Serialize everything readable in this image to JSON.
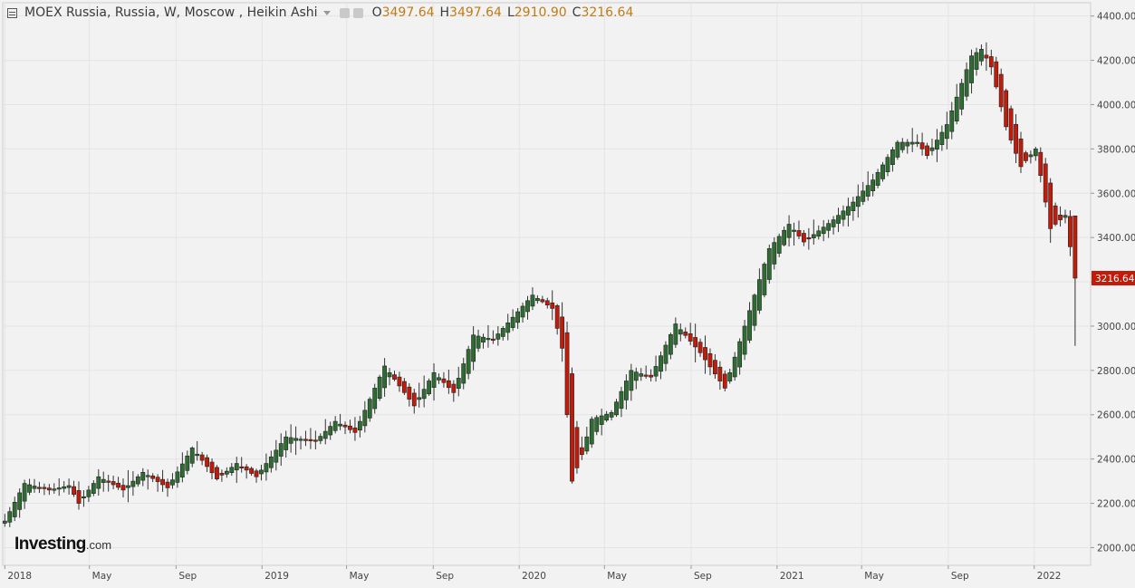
{
  "legend": {
    "symbol": "MOEX Russia, Russia, W, Moscow , Heikin Ashi",
    "open_key": "O",
    "open": "3497.64",
    "high_key": "H",
    "high": "3497.64",
    "low_key": "L",
    "low": "2910.90",
    "close_key": "C",
    "close": "3216.64"
  },
  "logo": {
    "main": "Investing",
    "suffix": ".com"
  },
  "colors": {
    "up": "#2e6d32",
    "down": "#c41a0a",
    "background": "#f2f2f2",
    "grid": "#e4e4e4",
    "axis_text": "#444444",
    "last_price_bg": "#c41a0a"
  },
  "chart_data": {
    "type": "candlestick",
    "chart_style": "Heikin Ashi",
    "interval": "Weekly",
    "y_axis_position": "right",
    "ylim": [
      1920,
      4460
    ],
    "yticks": [
      2000,
      2200,
      2400,
      2600,
      2800,
      3000,
      3200,
      3400,
      3600,
      3800,
      4000,
      4200,
      4400
    ],
    "ytick_labels": [
      "2000.00",
      "2200.00",
      "2400.00",
      "2600.00",
      "2800.00",
      "3000.00",
      "3200.00",
      "3400.00",
      "3600.00",
      "3800.00",
      "4000.00",
      "4200.00",
      "4400.00"
    ],
    "xlim": [
      "2017-12-29",
      "2022-03-22"
    ],
    "xticks": [
      {
        "label": "2018",
        "date": "2018-01-01"
      },
      {
        "label": "May",
        "date": "2018-05-01"
      },
      {
        "label": "Sep",
        "date": "2018-09-01"
      },
      {
        "label": "2019",
        "date": "2019-01-01"
      },
      {
        "label": "May",
        "date": "2019-05-01"
      },
      {
        "label": "Sep",
        "date": "2019-09-01"
      },
      {
        "label": "2020",
        "date": "2020-01-01"
      },
      {
        "label": "May",
        "date": "2020-05-01"
      },
      {
        "label": "Sep",
        "date": "2020-09-01"
      },
      {
        "label": "2021",
        "date": "2021-01-01"
      },
      {
        "label": "May",
        "date": "2021-05-01"
      },
      {
        "label": "Sep",
        "date": "2021-09-01"
      },
      {
        "label": "2022",
        "date": "2022-01-01"
      }
    ],
    "last_price": "3216.64",
    "series_close_path": [
      [
        "2018-01-01",
        2120
      ],
      [
        "2018-01-29",
        2290
      ],
      [
        "2018-03-05",
        2260
      ],
      [
        "2018-04-02",
        2280
      ],
      [
        "2018-04-16",
        2200
      ],
      [
        "2018-05-14",
        2320
      ],
      [
        "2018-06-18",
        2260
      ],
      [
        "2018-07-16",
        2340
      ],
      [
        "2018-08-20",
        2270
      ],
      [
        "2018-09-24",
        2450
      ],
      [
        "2018-10-29",
        2310
      ],
      [
        "2018-11-26",
        2380
      ],
      [
        "2018-12-24",
        2320
      ],
      [
        "2019-02-04",
        2500
      ],
      [
        "2019-03-18",
        2480
      ],
      [
        "2019-04-15",
        2570
      ],
      [
        "2019-05-13",
        2520
      ],
      [
        "2019-06-24",
        2820
      ],
      [
        "2019-08-05",
        2640
      ],
      [
        "2019-09-02",
        2790
      ],
      [
        "2019-09-30",
        2700
      ],
      [
        "2019-10-28",
        2960
      ],
      [
        "2019-11-25",
        2940
      ],
      [
        "2020-01-20",
        3140
      ],
      [
        "2020-02-17",
        3080
      ],
      [
        "2020-03-02",
        2900
      ],
      [
        "2020-03-16",
        2300
      ],
      [
        "2020-03-30",
        2420
      ],
      [
        "2020-04-13",
        2580
      ],
      [
        "2020-05-11",
        2610
      ],
      [
        "2020-06-08",
        2800
      ],
      [
        "2020-07-06",
        2770
      ],
      [
        "2020-08-10",
        3010
      ],
      [
        "2020-09-14",
        2880
      ],
      [
        "2020-10-19",
        2720
      ],
      [
        "2020-11-16",
        3000
      ],
      [
        "2020-12-21",
        3350
      ],
      [
        "2021-01-18",
        3460
      ],
      [
        "2021-02-08",
        3380
      ],
      [
        "2021-03-22",
        3480
      ],
      [
        "2021-04-19",
        3560
      ],
      [
        "2021-05-17",
        3660
      ],
      [
        "2021-06-21",
        3830
      ],
      [
        "2021-07-19",
        3830
      ],
      [
        "2021-08-02",
        3770
      ],
      [
        "2021-08-30",
        3910
      ],
      [
        "2021-10-04",
        4220
      ],
      [
        "2021-10-18",
        4250
      ],
      [
        "2021-11-01",
        4170
      ],
      [
        "2021-11-22",
        3900
      ],
      [
        "2021-12-13",
        3720
      ],
      [
        "2022-01-03",
        3800
      ],
      [
        "2022-01-24",
        3440
      ],
      [
        "2022-02-14",
        3500
      ],
      [
        "2022-02-28",
        3216.64
      ]
    ]
  }
}
